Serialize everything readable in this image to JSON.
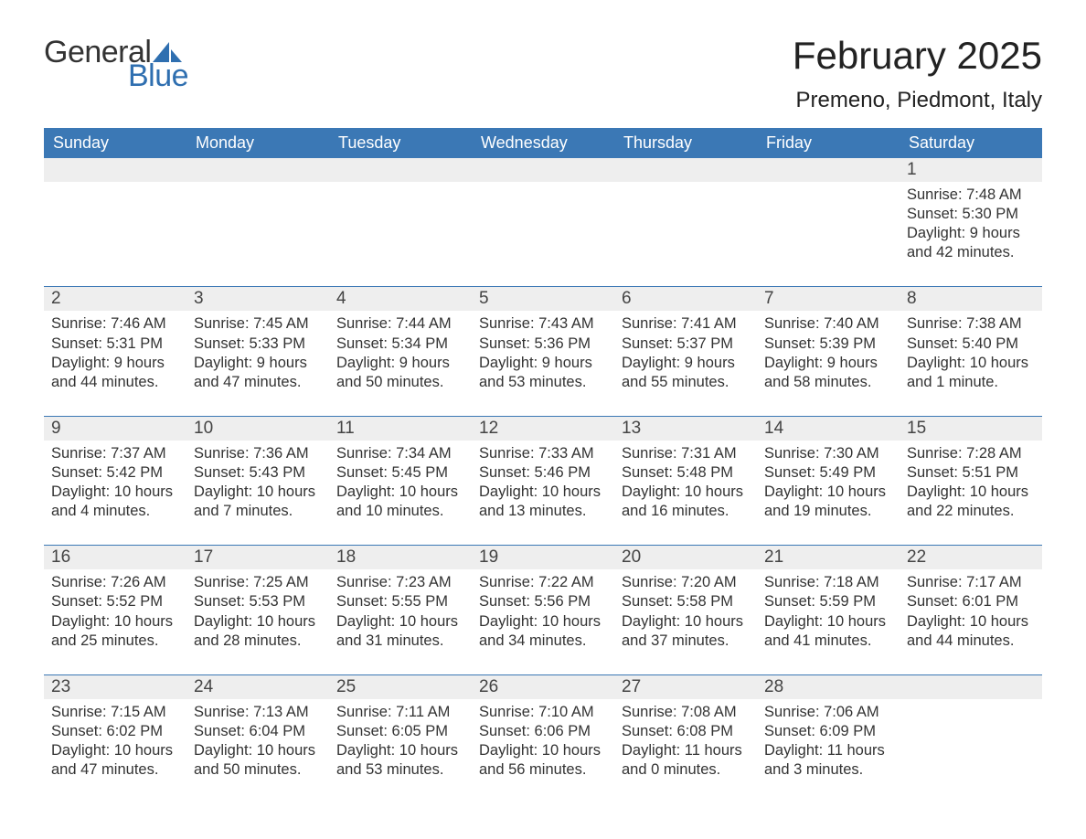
{
  "brand": {
    "part1": "General",
    "part2": "Blue",
    "accent_color": "#2f6fb0"
  },
  "title": "February 2025",
  "location": "Premeno, Piedmont, Italy",
  "colors": {
    "header_bg": "#3b78b5",
    "header_text": "#ffffff",
    "strip_bg": "#eeeeee",
    "rule": "#3b78b5",
    "body_text": "#333333"
  },
  "weekdays": [
    "Sunday",
    "Monday",
    "Tuesday",
    "Wednesday",
    "Thursday",
    "Friday",
    "Saturday"
  ],
  "weeks": [
    [
      null,
      null,
      null,
      null,
      null,
      null,
      {
        "n": "1",
        "sunrise": "Sunrise: 7:48 AM",
        "sunset": "Sunset: 5:30 PM",
        "day1": "Daylight: 9 hours",
        "day2": "and 42 minutes."
      }
    ],
    [
      {
        "n": "2",
        "sunrise": "Sunrise: 7:46 AM",
        "sunset": "Sunset: 5:31 PM",
        "day1": "Daylight: 9 hours",
        "day2": "and 44 minutes."
      },
      {
        "n": "3",
        "sunrise": "Sunrise: 7:45 AM",
        "sunset": "Sunset: 5:33 PM",
        "day1": "Daylight: 9 hours",
        "day2": "and 47 minutes."
      },
      {
        "n": "4",
        "sunrise": "Sunrise: 7:44 AM",
        "sunset": "Sunset: 5:34 PM",
        "day1": "Daylight: 9 hours",
        "day2": "and 50 minutes."
      },
      {
        "n": "5",
        "sunrise": "Sunrise: 7:43 AM",
        "sunset": "Sunset: 5:36 PM",
        "day1": "Daylight: 9 hours",
        "day2": "and 53 minutes."
      },
      {
        "n": "6",
        "sunrise": "Sunrise: 7:41 AM",
        "sunset": "Sunset: 5:37 PM",
        "day1": "Daylight: 9 hours",
        "day2": "and 55 minutes."
      },
      {
        "n": "7",
        "sunrise": "Sunrise: 7:40 AM",
        "sunset": "Sunset: 5:39 PM",
        "day1": "Daylight: 9 hours",
        "day2": "and 58 minutes."
      },
      {
        "n": "8",
        "sunrise": "Sunrise: 7:38 AM",
        "sunset": "Sunset: 5:40 PM",
        "day1": "Daylight: 10 hours",
        "day2": "and 1 minute."
      }
    ],
    [
      {
        "n": "9",
        "sunrise": "Sunrise: 7:37 AM",
        "sunset": "Sunset: 5:42 PM",
        "day1": "Daylight: 10 hours",
        "day2": "and 4 minutes."
      },
      {
        "n": "10",
        "sunrise": "Sunrise: 7:36 AM",
        "sunset": "Sunset: 5:43 PM",
        "day1": "Daylight: 10 hours",
        "day2": "and 7 minutes."
      },
      {
        "n": "11",
        "sunrise": "Sunrise: 7:34 AM",
        "sunset": "Sunset: 5:45 PM",
        "day1": "Daylight: 10 hours",
        "day2": "and 10 minutes."
      },
      {
        "n": "12",
        "sunrise": "Sunrise: 7:33 AM",
        "sunset": "Sunset: 5:46 PM",
        "day1": "Daylight: 10 hours",
        "day2": "and 13 minutes."
      },
      {
        "n": "13",
        "sunrise": "Sunrise: 7:31 AM",
        "sunset": "Sunset: 5:48 PM",
        "day1": "Daylight: 10 hours",
        "day2": "and 16 minutes."
      },
      {
        "n": "14",
        "sunrise": "Sunrise: 7:30 AM",
        "sunset": "Sunset: 5:49 PM",
        "day1": "Daylight: 10 hours",
        "day2": "and 19 minutes."
      },
      {
        "n": "15",
        "sunrise": "Sunrise: 7:28 AM",
        "sunset": "Sunset: 5:51 PM",
        "day1": "Daylight: 10 hours",
        "day2": "and 22 minutes."
      }
    ],
    [
      {
        "n": "16",
        "sunrise": "Sunrise: 7:26 AM",
        "sunset": "Sunset: 5:52 PM",
        "day1": "Daylight: 10 hours",
        "day2": "and 25 minutes."
      },
      {
        "n": "17",
        "sunrise": "Sunrise: 7:25 AM",
        "sunset": "Sunset: 5:53 PM",
        "day1": "Daylight: 10 hours",
        "day2": "and 28 minutes."
      },
      {
        "n": "18",
        "sunrise": "Sunrise: 7:23 AM",
        "sunset": "Sunset: 5:55 PM",
        "day1": "Daylight: 10 hours",
        "day2": "and 31 minutes."
      },
      {
        "n": "19",
        "sunrise": "Sunrise: 7:22 AM",
        "sunset": "Sunset: 5:56 PM",
        "day1": "Daylight: 10 hours",
        "day2": "and 34 minutes."
      },
      {
        "n": "20",
        "sunrise": "Sunrise: 7:20 AM",
        "sunset": "Sunset: 5:58 PM",
        "day1": "Daylight: 10 hours",
        "day2": "and 37 minutes."
      },
      {
        "n": "21",
        "sunrise": "Sunrise: 7:18 AM",
        "sunset": "Sunset: 5:59 PM",
        "day1": "Daylight: 10 hours",
        "day2": "and 41 minutes."
      },
      {
        "n": "22",
        "sunrise": "Sunrise: 7:17 AM",
        "sunset": "Sunset: 6:01 PM",
        "day1": "Daylight: 10 hours",
        "day2": "and 44 minutes."
      }
    ],
    [
      {
        "n": "23",
        "sunrise": "Sunrise: 7:15 AM",
        "sunset": "Sunset: 6:02 PM",
        "day1": "Daylight: 10 hours",
        "day2": "and 47 minutes."
      },
      {
        "n": "24",
        "sunrise": "Sunrise: 7:13 AM",
        "sunset": "Sunset: 6:04 PM",
        "day1": "Daylight: 10 hours",
        "day2": "and 50 minutes."
      },
      {
        "n": "25",
        "sunrise": "Sunrise: 7:11 AM",
        "sunset": "Sunset: 6:05 PM",
        "day1": "Daylight: 10 hours",
        "day2": "and 53 minutes."
      },
      {
        "n": "26",
        "sunrise": "Sunrise: 7:10 AM",
        "sunset": "Sunset: 6:06 PM",
        "day1": "Daylight: 10 hours",
        "day2": "and 56 minutes."
      },
      {
        "n": "27",
        "sunrise": "Sunrise: 7:08 AM",
        "sunset": "Sunset: 6:08 PM",
        "day1": "Daylight: 11 hours",
        "day2": "and 0 minutes."
      },
      {
        "n": "28",
        "sunrise": "Sunrise: 7:06 AM",
        "sunset": "Sunset: 6:09 PM",
        "day1": "Daylight: 11 hours",
        "day2": "and 3 minutes."
      },
      null
    ]
  ]
}
